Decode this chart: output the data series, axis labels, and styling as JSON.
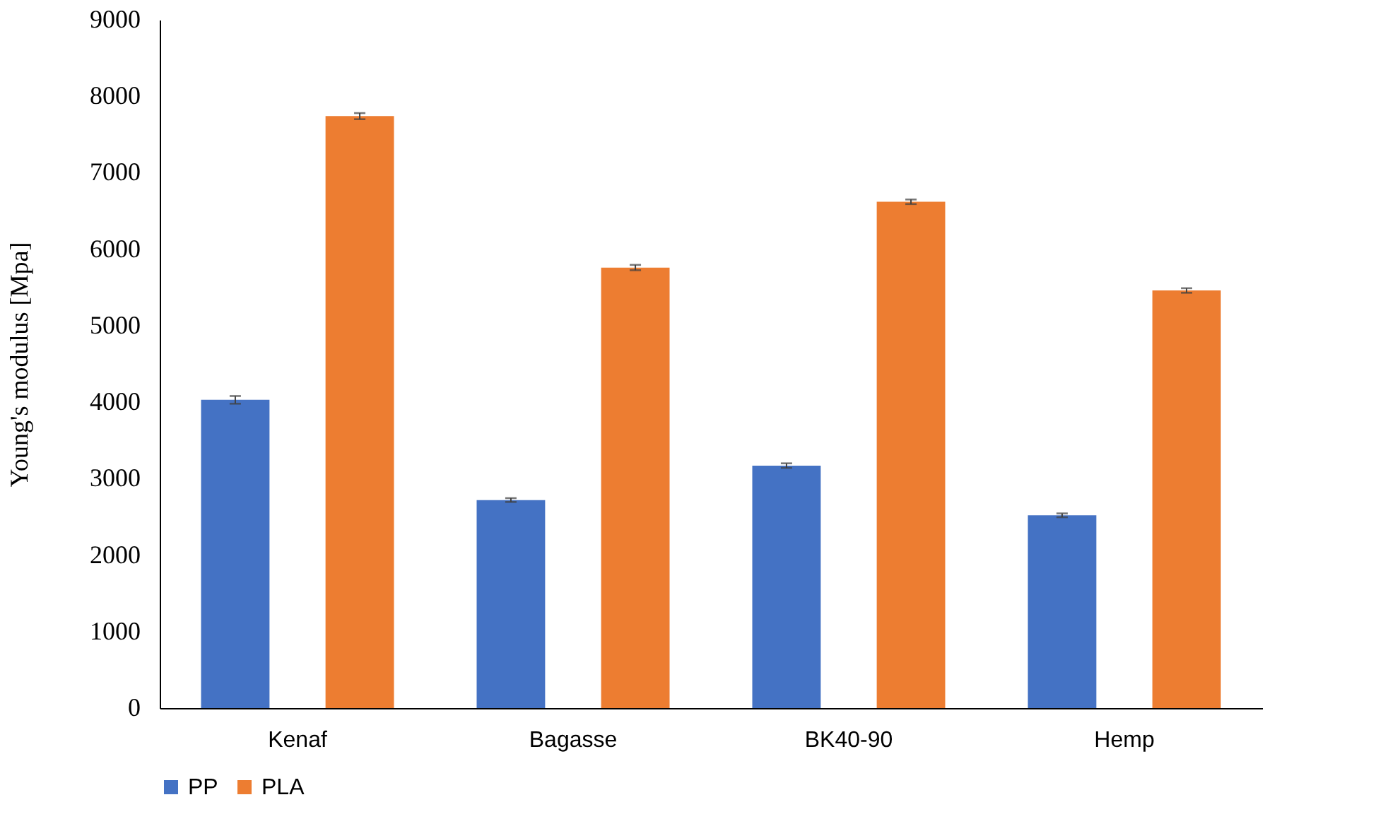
{
  "chart_data": {
    "type": "bar",
    "ylabel": "Young's modulus [Mpa]",
    "categories": [
      "Kenaf",
      "Bagasse",
      "BK40-90",
      "Hemp"
    ],
    "series": [
      {
        "name": "PP",
        "color": "#4472c4",
        "values": [
          4030,
          2720,
          3170,
          2520
        ],
        "errors": [
          50,
          25,
          30,
          25
        ]
      },
      {
        "name": "PLA",
        "color": "#ed7d31",
        "values": [
          7740,
          5760,
          6620,
          5460
        ],
        "errors": [
          40,
          35,
          30,
          30
        ]
      }
    ],
    "ylim": [
      0,
      9000
    ],
    "yticks": [
      0,
      1000,
      2000,
      3000,
      4000,
      5000,
      6000,
      7000,
      8000,
      9000
    ],
    "grid": false,
    "legend": "bottom"
  }
}
